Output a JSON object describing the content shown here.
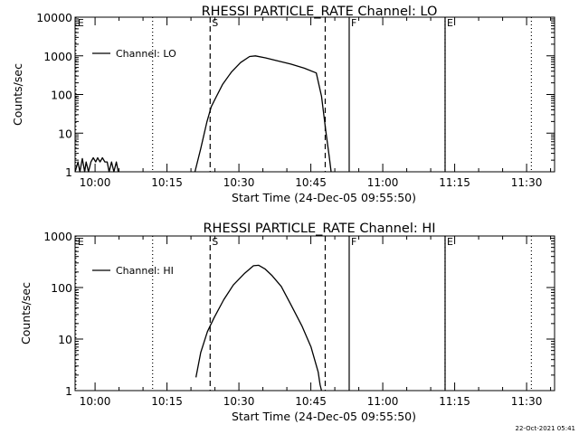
{
  "footer": {
    "timestamp": "22-Oct-2021 05:41"
  },
  "chart_data": [
    {
      "type": "line",
      "title": "RHESSI PARTICLE_RATE Channel: LO",
      "xlabel": "Start Time (24-Dec-05 09:55:50)",
      "ylabel": "Counts/sec",
      "yscale": "log",
      "ylim": [
        1,
        10000
      ],
      "xlim_minutes_after_start": [
        0,
        100
      ],
      "x_tick_labels": [
        "10:00",
        "10:15",
        "10:30",
        "10:45",
        "11:00",
        "11:15",
        "11:30"
      ],
      "y_tick_labels": [
        "1",
        "10",
        "100",
        "1000",
        "10000"
      ],
      "legend": {
        "label": "Channel: LO",
        "position": "top-left"
      },
      "grid": false,
      "markers": [
        {
          "time": "09:56",
          "label": "E",
          "style": "dotted"
        },
        {
          "time": "10:12",
          "label": "",
          "style": "dotted"
        },
        {
          "time": "10:24",
          "label": "S",
          "style": "dashed"
        },
        {
          "time": "10:48",
          "label": "",
          "style": "dashed"
        },
        {
          "time": "10:53",
          "label": "F",
          "style": "solid"
        },
        {
          "time": "11:13",
          "label": "E",
          "style": "solid"
        },
        {
          "time": "11:13",
          "label": "",
          "style": "dotted"
        },
        {
          "time": "11:31",
          "label": "",
          "style": "dotted"
        }
      ],
      "series": [
        {
          "name": "Channel: LO",
          "segments": [
            [
              [
                0.0,
                1
              ],
              [
                0.6,
                1.8
              ],
              [
                1.0,
                1
              ],
              [
                1.5,
                2.2
              ],
              [
                2.0,
                1
              ],
              [
                2.3,
                1.8
              ],
              [
                2.8,
                1
              ],
              [
                3.3,
                1.8
              ],
              [
                3.8,
                2.3
              ],
              [
                4.3,
                1.8
              ],
              [
                4.7,
                2.3
              ],
              [
                5.2,
                1.8
              ],
              [
                5.7,
                2.3
              ],
              [
                6.2,
                1.8
              ],
              [
                6.7,
                1.8
              ],
              [
                7.1,
                1
              ],
              [
                7.6,
                1.8
              ],
              [
                8.1,
                1
              ],
              [
                8.6,
                1.8
              ],
              [
                9.0,
                1
              ]
            ],
            [
              [
                25.0,
                1
              ],
              [
                26.2,
                4
              ],
              [
                27.5,
                20
              ],
              [
                28.4,
                48
              ],
              [
                29.4,
                85
              ],
              [
                30.8,
                185
              ],
              [
                32.6,
                380
              ],
              [
                34.5,
                670
              ],
              [
                36.4,
                960
              ],
              [
                37.6,
                1000
              ],
              [
                39.7,
                885
              ],
              [
                42.1,
                750
              ],
              [
                45.0,
                610
              ],
              [
                47.8,
                480
              ],
              [
                50.3,
                360
              ],
              [
                51.4,
                90
              ],
              [
                52.3,
                11
              ],
              [
                53.0,
                2.5
              ],
              [
                53.4,
                1
              ]
            ]
          ]
        }
      ]
    },
    {
      "type": "line",
      "title": "RHESSI PARTICLE_RATE Channel: HI",
      "xlabel": "Start Time (24-Dec-05 09:55:50)",
      "ylabel": "Counts/sec",
      "yscale": "log",
      "ylim": [
        1,
        1000
      ],
      "xlim_minutes_after_start": [
        0,
        100
      ],
      "x_tick_labels": [
        "10:00",
        "10:15",
        "10:30",
        "10:45",
        "11:00",
        "11:15",
        "11:30"
      ],
      "y_tick_labels": [
        "1",
        "10",
        "100",
        "1000"
      ],
      "legend": {
        "label": "Channel: HI",
        "position": "top-left"
      },
      "grid": false,
      "markers": [
        {
          "time": "09:56",
          "label": "E",
          "style": "dotted"
        },
        {
          "time": "10:12",
          "label": "",
          "style": "dotted"
        },
        {
          "time": "10:24",
          "label": "S",
          "style": "dashed"
        },
        {
          "time": "10:48",
          "label": "",
          "style": "dashed"
        },
        {
          "time": "10:53",
          "label": "F",
          "style": "solid"
        },
        {
          "time": "11:13",
          "label": "E",
          "style": "solid"
        },
        {
          "time": "11:13",
          "label": "",
          "style": "dotted"
        },
        {
          "time": "11:31",
          "label": "",
          "style": "dotted"
        }
      ],
      "series": [
        {
          "name": "Channel: HI",
          "segments": [
            [
              [
                25.2,
                1.8
              ],
              [
                26.2,
                5.5
              ],
              [
                27.6,
                14
              ],
              [
                29.0,
                26
              ],
              [
                31.0,
                58
              ],
              [
                33.0,
                112
              ],
              [
                35.4,
                190
              ],
              [
                37.2,
                265
              ],
              [
                38.3,
                270
              ],
              [
                39.6,
                230
              ],
              [
                41.1,
                170
              ],
              [
                43.0,
                105
              ],
              [
                45.1,
                45
              ],
              [
                47.3,
                18
              ],
              [
                49.2,
                7
              ],
              [
                50.7,
                2.3
              ],
              [
                51.1,
                1.3
              ],
              [
                51.4,
                1
              ]
            ]
          ]
        }
      ]
    }
  ]
}
